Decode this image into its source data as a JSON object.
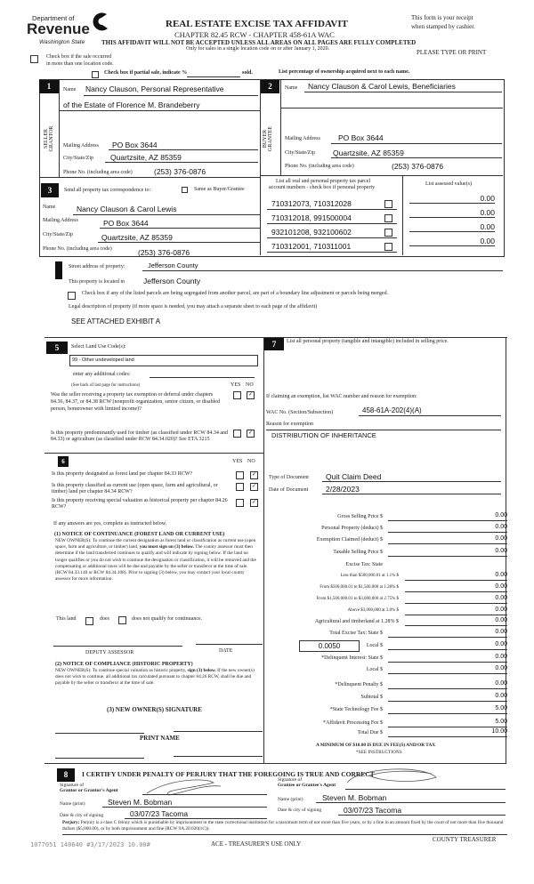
{
  "header": {
    "dept": "Department of",
    "revenue": "Revenue",
    "state": "Washington State",
    "title": "REAL ESTATE EXCISE TAX AFFIDAVIT",
    "chapter": "CHAPTER 82.45 RCW - CHAPTER 458-61A WAC",
    "warning": "THIS AFFIDAVIT WILL NOT BE ACCEPTED UNLESS ALL AREAS ON ALL PAGES ARE FULLY COMPLETED",
    "only": "Only for sales in a single location code on or after January 1, 2020.",
    "receipt1": "This form is your receipt",
    "receipt2": "when stamped by cashier.",
    "type_print": "PLEASE TYPE OR PRINT",
    "multi1": "Check box if the sale occurred",
    "multi2": "in more than one location code.",
    "partial": "Check box if partial sale, indicate %",
    "sold": "sold.",
    "percentage": "List percentage of ownership acquired next to each name."
  },
  "seller": {
    "num": "1",
    "side": "SELLER GRANTOR",
    "name_label": "Name",
    "name": "Nancy Clauson, Personal Representative",
    "name2": "of the Estate of Florence M. Brandeberry",
    "mail_label": "Mailing Address",
    "mail": "PO Box 3644",
    "city_label": "City/State/Zip",
    "city": "Quartzsite, AZ  85359",
    "phone_label": "Phone No. (including area code)",
    "phone": "(253) 376-0876"
  },
  "buyer": {
    "num": "2",
    "side": "BUYER GRANTEE",
    "name_label": "Name",
    "name": "Nancy Clauson & Carol Lewis, Beneficiaries",
    "mail_label": "Mailing Address",
    "mail": "PO Box 3644",
    "city_label": "City/State/Zip",
    "city": "Quartzsite, AZ  85359",
    "phone_label": "Phone No. (including area code)",
    "phone": "(253) 376-0876"
  },
  "corr": {
    "num": "3",
    "label": "Send all property tax correspondence to:",
    "same": "Same as Buyer/Grantee",
    "name_label": "Name",
    "name": "Nancy Clauson & Carol Lewis",
    "mail_label": "Mailing Address",
    "mail": "PO Box 3644",
    "city_label": "City/State/Zip",
    "city": "Quartzsite, AZ  85359",
    "phone_label": "Phone No. (including area code)",
    "phone": "(253) 376-0876"
  },
  "parcels": {
    "header1": "List all real and personal property tax parcel",
    "header2": "account numbers - check box if personal property",
    "values_header": "List assessed value(s)",
    "rows": [
      {
        "acct": "710312073, 710312028",
        "value": "0.00"
      },
      {
        "acct": "710312018, 991500004",
        "value": "0.00"
      },
      {
        "acct": "932101208, 932100602",
        "value": "0.00"
      },
      {
        "acct": "710312001, 710311001",
        "value": "0.00"
      }
    ]
  },
  "property": {
    "street_label": "Street address of property:",
    "street": "Jefferson County",
    "located_label": "This property is located in",
    "located": "Jefferson County",
    "segregated": "Check box if any of the listed parcels are being segregated from another parcel, are part of a boundary line adjustment or parcels being merged.",
    "legal_label": "Legal description of property (if more space is needed, you may attach a separate sheet to each page of the affidavit)",
    "legal": "SEE ATTACHED EXHIBIT A"
  },
  "s5": {
    "num": "5",
    "label": "Select Land Use Code(s):",
    "code": "99 - Other undeveloped land",
    "additional": "enter any additional codes:",
    "see_back": "(See back of last page for instructions)",
    "yes": "YES",
    "no": "NO",
    "q1": "Was the seller receiving a property tax exemption or deferral under chapters 84.36, 84.37, or 84.38 RCW (nonprofit organization, senior citizen, or disabled person, homeowner with limited income)?",
    "q2": "Is this property predominantly used for timber (as classified under RCW 84.34 and 84.33) or agriculture (as classified under RCW 84.34.020)? See ETA 3215"
  },
  "s6": {
    "num": "6",
    "yes": "YES",
    "no": "NO",
    "q1": "Is this property designated as forest land per chapter 84.33 RCW?",
    "q2": "Is this property classified as current use (open space, farm and agricultural, or timber) land per chapter 84.34 RCW?",
    "q3": "Is this property receiving special valuation as historical property per chapter 84.26 RCW?",
    "if_yes": "If any answers are yes, complete as instructed below.",
    "n1_title": "(1) NOTICE OF CONTINUANCE (FOREST LAND OR CURRENT USE)",
    "n1_a": "NEW OWNER(S): To continue the current designation as forest land or classification as current use (open space, farm and agriculture, or timber) land,",
    "n1_bold": "you must sign on (3) below.",
    "n1_b": "The county assessor must then determine if the land transferred continues to qualify and will indicate by signing below. If the land no longer qualifies or you do not wish to continue the designation or classification, it will be removed and the compensating or additional taxes will be due and payable by the seller or transferor at the time of sale. (RCW 84.33.140 or RCW 84.34.108). Prior to signing (3) below, you may contact your local county assessor for more information.",
    "this_land": "This land",
    "does": "does",
    "does_not": "does not qualify for continuance.",
    "deputy": "DEPUTY ASSESSOR",
    "date": "DATE",
    "n2_title": "(2) NOTICE OF COMPLIANCE (HISTORIC PROPERTY)",
    "n2_a": "NEW OWNER(S): To continue special valuation as historic property,",
    "n2_bold": "sign (3) below.",
    "n2_b": "If the new owner(s) does not wish to continue, all additional tax calculated pursuant to chapter 84.26 RCW, shall be due and payable by the seller or transferor at the time of sale.",
    "n3": "(3) NEW OWNER(S) SIGNATURE",
    "print_name": "PRINT NAME"
  },
  "s7": {
    "num": "7",
    "label": "List all personal property (tangible and intangible) included in selling price.",
    "exempt_label": "If claiming an exemption, list WAC number and reason for exemption:",
    "wac_label": "WAC No. (Section/Subsection)",
    "wac": "458-61A-202(4)(A)",
    "reason_label": "Reason for exemption",
    "reason": "DISTRIBUTION OF INHERITANCE",
    "doc_type_label": "Type of Document",
    "doc_type": "Quit Claim Deed",
    "doc_date_label": "Date of Document",
    "doc_date": "2/28/2023"
  },
  "tax": {
    "rows": [
      {
        "label": "Gross Selling Price  $",
        "value": "0.00"
      },
      {
        "label": "Personal Property (deduct)  $",
        "value": "0.00"
      },
      {
        "label": "Exemption Claimed (deduct)  $",
        "value": "0.00"
      },
      {
        "label": "Taxable Selling Price  $",
        "value": "0.00"
      },
      {
        "label": "Excise Tax: State",
        "value": ""
      },
      {
        "label": "Less than $500,000.01 at 1.1%  $",
        "value": "0.00"
      },
      {
        "label": "From $500,000.01 to $1,500,000 at 1.28%  $",
        "value": "0.00"
      },
      {
        "label": "From $1,500,000.01 to $3,000,000 at 2.75%  $",
        "value": "0.00"
      },
      {
        "label": "Above $3,000,000 at 3.0%  $",
        "value": "0.00"
      },
      {
        "label": "Agricultural and timberland at 1.28%  $",
        "value": "0.00"
      },
      {
        "label": "Total Excise Tax: State  $",
        "value": "0.00"
      },
      {
        "label": "Local  $",
        "value": "0.00"
      },
      {
        "label": "*Delinquent Interest: State  $",
        "value": "0.00"
      },
      {
        "label": "Local  $",
        "value": "0.00"
      },
      {
        "label": "*Delinquent Penalty  $",
        "value": "0.00"
      },
      {
        "label": "Subtotal  $",
        "value": "0.00"
      },
      {
        "label": "*State Technology Fee  $",
        "value": "5.00"
      },
      {
        "label": "*Affidavit Processing Fee  $",
        "value": "5.00"
      },
      {
        "label": "Total Due  $",
        "value": "10.00"
      }
    ],
    "local_rate": "0.0050",
    "minimum": "A MINIMUM OF $10.00 IS DUE IN FEE(S) AND/OR TAX",
    "see": "*SEE INSTRUCTIONS"
  },
  "s8": {
    "num": "8",
    "certify": "I CERTIFY UNDER PENALTY OF PERJURY THAT THE FOREGOING IS TRUE AND CORRECT",
    "sig_l1": "Signature of",
    "sig_l2": "Grantor or Grantor's Agent",
    "sig_r1": "Signature of",
    "sig_r2": "Grantee or Grantee's Agent",
    "name_label": "Name (print)",
    "name_l": "Steven M. Bobman",
    "name_r": "Steven M. Bobman",
    "date_label": "Date & city of signing",
    "date_l": "03/07/23  Tacoma",
    "date_r": "03/07/23  Tacoma",
    "perjury_label": "Perjury:",
    "perjury": "Perjury is a class C felony which is punishable by imprisonment in the state correctional institution for a maximum term of not more than five years, or by a fine in an amount fixed by the court of not more than five thousand dollars ($5,000.00), or by both imprisonment and fine (RCW 9A.20.020(1C)).",
    "stamp": "1077051 140640 #3/17/2023 10.00#",
    "treasurer_use": "ACE - TREASURER'S USE ONLY",
    "county_treasurer": "COUNTY TREASURER"
  }
}
